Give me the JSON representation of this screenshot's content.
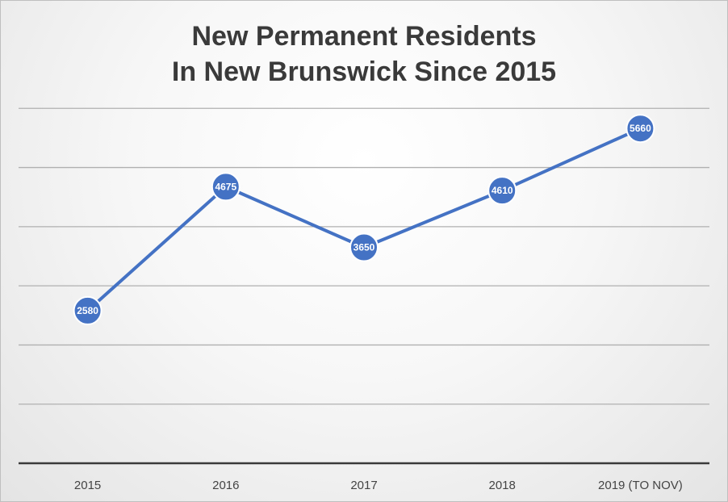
{
  "chart_data": {
    "type": "line",
    "title_lines": [
      "New Permanent Residents",
      "In New Brunswick Since 2015"
    ],
    "categories": [
      "2015",
      "2016",
      "2017",
      "2018",
      "2019 (TO NOV)"
    ],
    "series": [
      {
        "values": [
          2580,
          4675,
          3650,
          4610,
          5660
        ]
      }
    ],
    "data_labels": [
      "2580",
      "4675",
      "3650",
      "4610",
      "5660"
    ],
    "ylim": [
      0,
      7000
    ],
    "y_gridline_step": 1000,
    "grid": true,
    "colors": {
      "series": "#4472c4",
      "title": "#3a3a3a",
      "grid": "#b0b0b0"
    }
  }
}
